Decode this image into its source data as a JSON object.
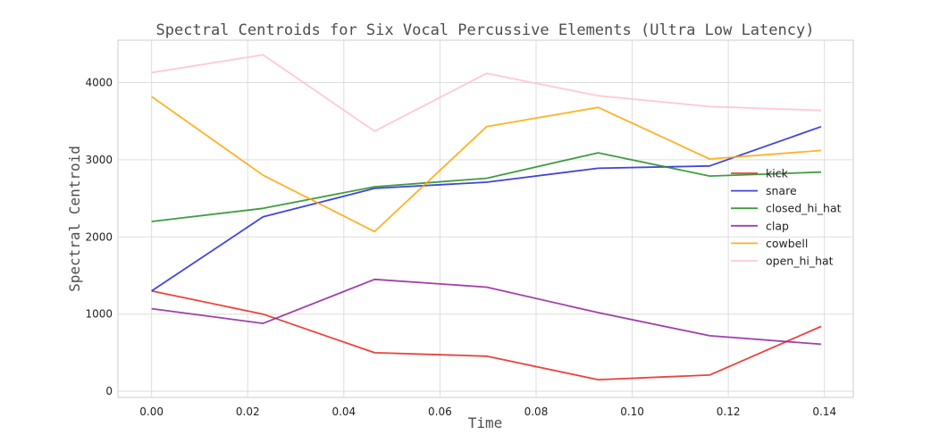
{
  "chart_data": {
    "type": "line",
    "title": "Spectral Centroids for Six Vocal Percussive Elements (Ultra Low Latency)",
    "xlabel": "Time",
    "ylabel": "Spectral Centroid",
    "x": [
      0.0,
      0.0232,
      0.0464,
      0.0697,
      0.0929,
      0.1161,
      0.1393
    ],
    "xlim": [
      -0.007,
      0.146
    ],
    "ylim": [
      -80,
      4550
    ],
    "x_ticks": [
      0.0,
      0.02,
      0.04,
      0.06,
      0.08,
      0.1,
      0.12,
      0.14
    ],
    "x_tick_labels": [
      "0.00",
      "0.02",
      "0.04",
      "0.06",
      "0.08",
      "0.10",
      "0.12",
      "0.14"
    ],
    "y_ticks": [
      0,
      1000,
      2000,
      3000,
      4000
    ],
    "y_tick_labels": [
      "0",
      "1000",
      "2000",
      "3000",
      "4000"
    ],
    "grid": true,
    "legend_position": "center-right",
    "series": [
      {
        "name": "kick",
        "color": "#e8211c",
        "values": [
          1300,
          1000,
          500,
          455,
          150,
          210,
          840
        ]
      },
      {
        "name": "snare",
        "color": "#1f24d6",
        "values": [
          1300,
          2260,
          2630,
          2710,
          2890,
          2920,
          3430
        ]
      },
      {
        "name": "closed_hi_hat",
        "color": "#1f8c1f",
        "values": [
          2200,
          2370,
          2650,
          2760,
          3090,
          2790,
          2840
        ]
      },
      {
        "name": "clap",
        "color": "#8f1f9c",
        "values": [
          1070,
          880,
          1450,
          1350,
          1020,
          720,
          610
        ]
      },
      {
        "name": "cowbell",
        "color": "#ffa500",
        "values": [
          3820,
          2800,
          2070,
          3430,
          3680,
          3010,
          3120
        ]
      },
      {
        "name": "open_hi_hat",
        "color": "#ffc0cb",
        "values": [
          4130,
          4360,
          3370,
          4120,
          3830,
          3690,
          3640
        ]
      }
    ]
  }
}
